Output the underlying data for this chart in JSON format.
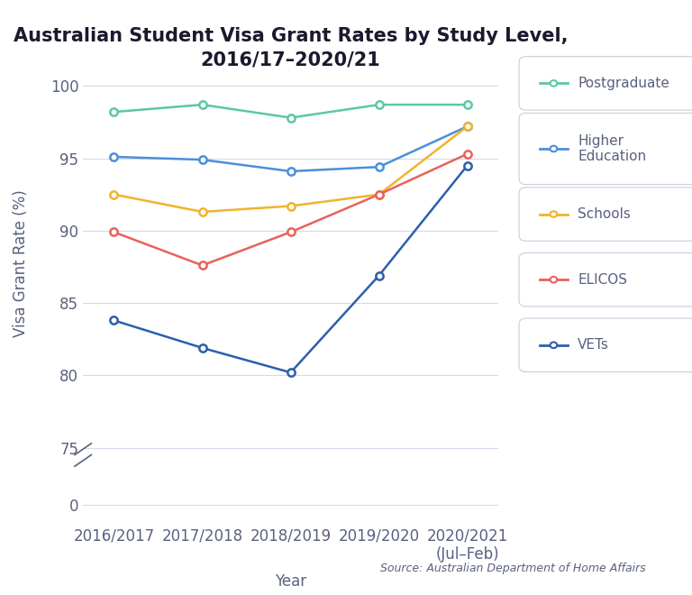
{
  "title": "Australian Student Visa Grant Rates by Study Level,\n2016/17–2020/21",
  "xlabel": "Year",
  "ylabel": "Visa Grant Rate (%)",
  "source": "Source: Australian Department of Home Affairs",
  "x_labels": [
    "2016/2017",
    "2017/2018",
    "2018/2019",
    "2019/2020",
    "2020/2021\n(Jul–Feb)"
  ],
  "series_order": [
    "Postgraduate",
    "Higher\nEducation",
    "Schools",
    "ELICOS",
    "VETs"
  ],
  "series": {
    "Postgraduate": {
      "values": [
        98.2,
        98.7,
        97.8,
        98.7,
        98.7
      ],
      "color": "#5CC8A0",
      "marker": "o"
    },
    "Higher\nEducation": {
      "values": [
        95.1,
        94.9,
        94.1,
        94.4,
        97.2
      ],
      "color": "#4A90D9",
      "marker": "o"
    },
    "Schools": {
      "values": [
        92.5,
        91.3,
        91.7,
        92.5,
        97.2
      ],
      "color": "#F0B429",
      "marker": "o"
    },
    "ELICOS": {
      "values": [
        89.9,
        87.6,
        89.9,
        92.5,
        95.3
      ],
      "color": "#E8625A",
      "marker": "o"
    },
    "VETs": {
      "values": [
        83.8,
        81.9,
        80.2,
        86.9,
        94.5
      ],
      "color": "#2C5FAD",
      "marker": "o"
    }
  },
  "ytick_positions": [
    0,
    75,
    80,
    85,
    90,
    95,
    100
  ],
  "ytick_labels": [
    "0",
    "75",
    "80",
    "85",
    "90",
    "95",
    "100"
  ],
  "background_color": "#ffffff",
  "grid_color": "#d5d9e8",
  "tick_color": "#5a6080",
  "title_fontsize": 15,
  "label_fontsize": 12,
  "tick_fontsize": 12,
  "legend_fontsize": 11,
  "legend_labels": [
    "Postgraduate",
    "Higher\nEducation",
    "Schools",
    "ELICOS",
    "VETs"
  ]
}
